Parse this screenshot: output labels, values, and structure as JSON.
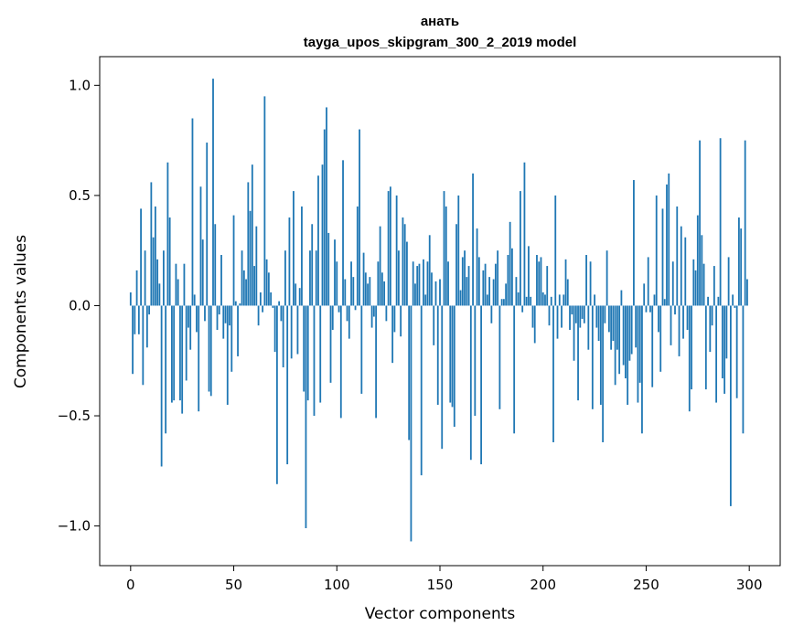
{
  "chart_data": {
    "type": "bar",
    "title": "анать",
    "subtitle": "tayga_upos_skipgram_300_2_2019 model",
    "xlabel": "Vector components",
    "ylabel": "Components values",
    "xlim": [
      -15,
      315
    ],
    "ylim": [
      -1.18,
      1.13
    ],
    "xticks": [
      0,
      50,
      100,
      150,
      200,
      250,
      300
    ],
    "xtick_labels": [
      "0",
      "50",
      "100",
      "150",
      "200",
      "250",
      "300"
    ],
    "yticks": [
      -1.0,
      -0.5,
      0.0,
      0.5,
      1.0
    ],
    "ytick_labels": [
      "−1.0",
      "−0.5",
      "0.0",
      "0.5",
      "1.0"
    ],
    "bar_color": "#1f77b4",
    "x": "0..299",
    "values": [
      0.06,
      -0.31,
      -0.13,
      0.16,
      -0.13,
      0.44,
      -0.36,
      0.25,
      -0.19,
      -0.04,
      0.56,
      0.31,
      0.45,
      0.21,
      0.1,
      -0.73,
      0.25,
      -0.58,
      0.65,
      0.4,
      -0.44,
      -0.43,
      0.19,
      0.12,
      -0.43,
      -0.49,
      0.19,
      -0.34,
      -0.1,
      -0.2,
      0.85,
      0.05,
      -0.12,
      -0.48,
      0.54,
      0.3,
      -0.07,
      0.74,
      -0.39,
      -0.41,
      1.03,
      0.37,
      -0.11,
      -0.04,
      0.23,
      -0.15,
      -0.08,
      -0.45,
      -0.09,
      -0.3,
      0.41,
      0.02,
      -0.23,
      0.01,
      0.25,
      0.16,
      0.12,
      0.56,
      0.43,
      0.64,
      0.18,
      0.36,
      -0.09,
      0.06,
      -0.03,
      0.95,
      0.21,
      0.15,
      0.06,
      -0.01,
      -0.21,
      -0.81,
      0.02,
      -0.07,
      -0.28,
      0.25,
      -0.72,
      0.4,
      -0.24,
      0.52,
      0.1,
      -0.22,
      0.08,
      0.45,
      -0.39,
      -1.01,
      -0.43,
      0.25,
      0.37,
      -0.5,
      0.25,
      0.59,
      -0.44,
      0.64,
      0.8,
      0.9,
      0.33,
      -0.35,
      -0.11,
      0.3,
      0.2,
      -0.03,
      -0.51,
      0.66,
      0.12,
      -0.07,
      -0.15,
      0.2,
      0.13,
      -0.02,
      0.45,
      0.8,
      -0.4,
      0.24,
      0.15,
      0.1,
      0.13,
      -0.1,
      -0.05,
      -0.51,
      0.2,
      0.36,
      0.15,
      0.11,
      -0.07,
      0.52,
      0.54,
      -0.26,
      -0.12,
      0.5,
      0.25,
      -0.14,
      0.4,
      0.37,
      0.29,
      -0.61,
      -1.07,
      0.2,
      0.1,
      0.18,
      0.19,
      -0.77,
      0.21,
      0.05,
      0.2,
      0.32,
      0.15,
      -0.18,
      0.11,
      -0.45,
      0.12,
      -0.65,
      0.52,
      0.45,
      0.2,
      -0.44,
      -0.46,
      -0.55,
      0.37,
      0.5,
      0.07,
      0.22,
      0.25,
      0.13,
      0.18,
      -0.7,
      0.6,
      -0.5,
      0.35,
      0.22,
      -0.72,
      0.16,
      0.19,
      0.05,
      0.13,
      -0.08,
      0.12,
      0.19,
      0.25,
      -0.47,
      0.03,
      0.03,
      0.1,
      0.23,
      0.38,
      0.26,
      -0.58,
      0.13,
      0.06,
      0.52,
      -0.03,
      0.65,
      0.04,
      0.27,
      0.04,
      -0.1,
      -0.17,
      0.23,
      0.2,
      0.22,
      0.06,
      0.05,
      0.18,
      -0.09,
      0.04,
      -0.62,
      0.5,
      -0.15,
      0.05,
      -0.1,
      0.05,
      0.21,
      0.12,
      -0.11,
      -0.04,
      -0.25,
      -0.08,
      -0.43,
      -0.1,
      -0.06,
      -0.08,
      0.23,
      -0.2,
      0.2,
      -0.47,
      0.05,
      -0.1,
      -0.16,
      -0.45,
      -0.62,
      -0.08,
      0.25,
      -0.12,
      -0.2,
      -0.16,
      -0.36,
      -0.2,
      -0.31,
      0.07,
      -0.27,
      -0.33,
      -0.45,
      -0.25,
      -0.22,
      0.57,
      -0.19,
      -0.44,
      -0.35,
      -0.58,
      0.1,
      -0.03,
      0.22,
      -0.03,
      -0.37,
      0.05,
      0.5,
      -0.12,
      -0.3,
      0.44,
      0.03,
      0.55,
      0.6,
      -0.18,
      0.2,
      -0.04,
      0.45,
      -0.23,
      0.36,
      -0.15,
      0.31,
      -0.11,
      -0.48,
      -0.38,
      0.21,
      0.16,
      0.41,
      0.75,
      0.32,
      0.19,
      -0.38,
      0.04,
      -0.21,
      -0.09,
      0.18,
      -0.44,
      0.04,
      0.76,
      -0.33,
      -0.4,
      -0.24,
      0.22,
      -0.91,
      0.05,
      -0.01,
      -0.42,
      0.4,
      0.35,
      -0.58,
      0.75,
      0.12
    ]
  }
}
